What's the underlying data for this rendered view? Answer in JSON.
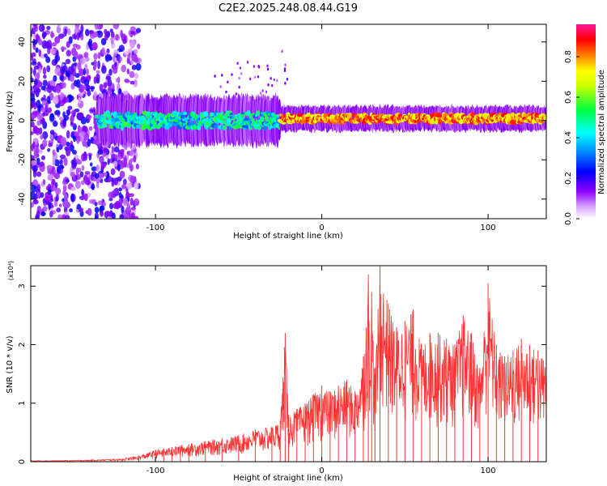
{
  "title": "C2E2.2025.248.08.44.G19",
  "chart_data": [
    {
      "type": "heatmap",
      "title": "",
      "xlabel": "Height of straight line (km)",
      "ylabel": "Frequency (Hz)",
      "xlim": [
        -175,
        135
      ],
      "ylim": [
        -50,
        49
      ],
      "xticks": [
        -100,
        0,
        100
      ],
      "yticks": [
        -40,
        -20,
        0,
        20,
        40
      ],
      "colorbar": {
        "label": "Normalized spectral amplitude",
        "range": [
          0,
          0.96
        ],
        "ticks": [
          "0.0",
          "0.2",
          "0.4",
          "0.6",
          "0.8"
        ],
        "tick_values": [
          0,
          0.2,
          0.4,
          0.6,
          0.8
        ],
        "colormap": [
          "#ffffff",
          "#8f00ff",
          "#0000ff",
          "#00ffff",
          "#00ff00",
          "#ffff00",
          "#ff8000",
          "#ff0000",
          "#ff1493"
        ]
      },
      "description_series": [
        {
          "name": "noise region",
          "x_range": [
            -175,
            -110
          ],
          "freq_range": [
            -50,
            49
          ],
          "amplitude": [
            0.1,
            0.25
          ]
        },
        {
          "name": "signal band",
          "x_range": [
            -135,
            -25
          ],
          "freq_center": 0,
          "freq_halfwidth": 6,
          "amplitude": [
            0.3,
            0.6
          ]
        },
        {
          "name": "signal band",
          "x_range": [
            -25,
            135
          ],
          "freq_center": 1,
          "freq_halfwidth": 3,
          "amplitude": [
            0.7,
            0.95
          ]
        }
      ]
    },
    {
      "type": "line",
      "title": "",
      "xlabel": "Height of straight line (km)",
      "ylabel": "SNR (10 * v/v)",
      "y_multiplier": "(x10⁴)",
      "xlim": [
        -175,
        135
      ],
      "ylim": [
        0,
        3.35
      ],
      "xticks": [
        -100,
        0,
        100
      ],
      "yticks": [
        0,
        1,
        2,
        3
      ],
      "series": [
        {
          "name": "SNR",
          "color": "#ff3333",
          "x": [
            -175,
            -160,
            -140,
            -120,
            -110,
            -100,
            -95,
            -90,
            -85,
            -80,
            -70,
            -60,
            -50,
            -40,
            -30,
            -25,
            -22,
            -20,
            -15,
            -10,
            -5,
            0,
            5,
            10,
            15,
            20,
            25,
            28,
            30,
            32,
            35,
            40,
            45,
            50,
            55,
            60,
            65,
            70,
            75,
            80,
            85,
            90,
            95,
            100,
            105,
            110,
            115,
            120,
            125,
            130,
            135
          ],
          "y": [
            0.02,
            0.02,
            0.03,
            0.05,
            0.1,
            0.2,
            0.22,
            0.25,
            0.28,
            0.3,
            0.35,
            0.4,
            0.45,
            0.55,
            0.6,
            0.7,
            2.2,
            0.8,
            0.9,
            1.0,
            1.15,
            1.3,
            1.2,
            1.3,
            1.4,
            1.2,
            1.8,
            3.2,
            2.9,
            1.5,
            3.35,
            2.7,
            2.3,
            2.4,
            2.6,
            2.0,
            2.2,
            2.2,
            2.1,
            2.0,
            2.5,
            2.2,
            1.6,
            3.05,
            2.0,
            1.8,
            1.9,
            2.1,
            2.0,
            1.9,
            1.75
          ]
        }
      ]
    }
  ]
}
